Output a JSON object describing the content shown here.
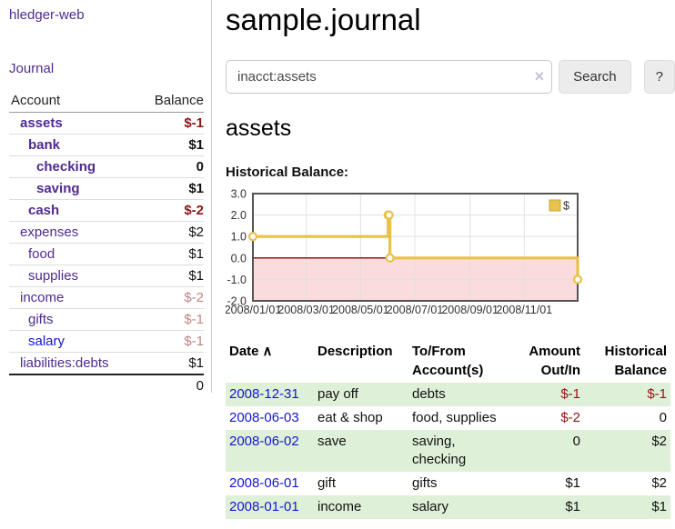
{
  "colors": {
    "link_purple": "#4f2b8f",
    "link_blue": "#1515d6",
    "negative_strong": "#8c1616",
    "negative_faded": "#c08484",
    "row_green": "#dff0d8",
    "chart_line": "#e8c24a",
    "chart_line_border": "#c9a63d",
    "chart_negative_bg": "#fbdcdc",
    "chart_zero_line": "#8f0000",
    "chart_border": "#545454",
    "grid_line": "#e0e0e0",
    "button_bg": "#ececec"
  },
  "sidebar": {
    "brand": "hledger-web",
    "nav_journal": "Journal",
    "accounts_header": {
      "account": "Account",
      "balance": "Balance"
    },
    "accounts": [
      {
        "name": "assets",
        "depth": 0,
        "bold": true,
        "link_color": "purple",
        "balance": "$-1",
        "balance_style": "neg"
      },
      {
        "name": "bank",
        "depth": 1,
        "bold": true,
        "link_color": "purple",
        "balance": "$1",
        "balance_style": ""
      },
      {
        "name": "checking",
        "depth": 2,
        "bold": true,
        "link_color": "purple",
        "balance": "0",
        "balance_style": ""
      },
      {
        "name": "saving",
        "depth": 2,
        "bold": true,
        "link_color": "purple",
        "balance": "$1",
        "balance_style": ""
      },
      {
        "name": "cash",
        "depth": 1,
        "bold": true,
        "link_color": "purple",
        "balance": "$-2",
        "balance_style": "neg"
      },
      {
        "name": "expenses",
        "depth": 0,
        "bold": false,
        "link_color": "purple",
        "balance": "$2",
        "balance_style": ""
      },
      {
        "name": "food",
        "depth": 1,
        "bold": false,
        "link_color": "purple",
        "balance": "$1",
        "balance_style": ""
      },
      {
        "name": "supplies",
        "depth": 1,
        "bold": false,
        "link_color": "purple",
        "balance": "$1",
        "balance_style": ""
      },
      {
        "name": "income",
        "depth": 0,
        "bold": false,
        "link_color": "purple",
        "balance": "$-2",
        "balance_style": "negfade"
      },
      {
        "name": "gifts",
        "depth": 1,
        "bold": false,
        "link_color": "purple",
        "balance": "$-1",
        "balance_style": "negfade"
      },
      {
        "name": "salary",
        "depth": 1,
        "bold": false,
        "link_color": "blue",
        "balance": "$-1",
        "balance_style": "negfade"
      },
      {
        "name": "liabilities:debts",
        "depth": 0,
        "bold": false,
        "link_color": "purple",
        "balance": "$1",
        "balance_style": ""
      }
    ],
    "total": "0"
  },
  "main": {
    "title": "sample.journal",
    "search": {
      "value": "inacct:assets",
      "clear_icon": "×",
      "button_label": "Search",
      "help_label": "?"
    },
    "account_heading": "assets",
    "chart_label": "Historical Balance:"
  },
  "chart_data": {
    "type": "line",
    "title": "Historical Balance:",
    "step": true,
    "series": [
      {
        "name": "$",
        "points": [
          [
            "2008-01-01",
            1
          ],
          [
            "2008-06-01",
            2
          ],
          [
            "2008-06-02",
            2
          ],
          [
            "2008-06-03",
            0
          ],
          [
            "2008-12-31",
            -1
          ]
        ]
      }
    ],
    "x_ticks": [
      "2008/01/01",
      "2008/03/01",
      "2008/05/01",
      "2008/07/01",
      "2008/09/01",
      "2008/11/01"
    ],
    "y_ticks": [
      "3.0",
      "2.0",
      "1.0",
      "0.0",
      "-1.0",
      "-2.0"
    ],
    "ylim": [
      -2,
      3
    ],
    "xlim": [
      "2008-01-01",
      "2008-12-31"
    ],
    "grid": true,
    "legend_position": "top-right",
    "legend_label": "$",
    "negative_region_shaded": true
  },
  "register": {
    "sort_icon": "∧",
    "columns": [
      {
        "line1": "Date",
        "line2": "",
        "align": "left"
      },
      {
        "line1": "Description",
        "line2": "",
        "align": "left"
      },
      {
        "line1": "To/From",
        "line2": "Account(s)",
        "align": "left"
      },
      {
        "line1": "Amount",
        "line2": "Out/In",
        "align": "right"
      },
      {
        "line1": "Historical",
        "line2": "Balance",
        "align": "right"
      }
    ],
    "rows": [
      {
        "date": "2008-12-31",
        "description": "pay off",
        "accounts": "debts",
        "amount": "$-1",
        "amount_negative": true,
        "balance": "$-1",
        "balance_negative": true
      },
      {
        "date": "2008-06-03",
        "description": "eat & shop",
        "accounts": "food, supplies",
        "amount": "$-2",
        "amount_negative": true,
        "balance": "0",
        "balance_negative": false
      },
      {
        "date": "2008-06-02",
        "description": "save",
        "accounts": "saving, checking",
        "amount": "0",
        "amount_negative": false,
        "balance": "$2",
        "balance_negative": false
      },
      {
        "date": "2008-06-01",
        "description": "gift",
        "accounts": "gifts",
        "amount": "$1",
        "amount_negative": false,
        "balance": "$2",
        "balance_negative": false
      },
      {
        "date": "2008-01-01",
        "description": "income",
        "accounts": "salary",
        "amount": "$1",
        "amount_negative": false,
        "balance": "$1",
        "balance_negative": false
      }
    ]
  }
}
